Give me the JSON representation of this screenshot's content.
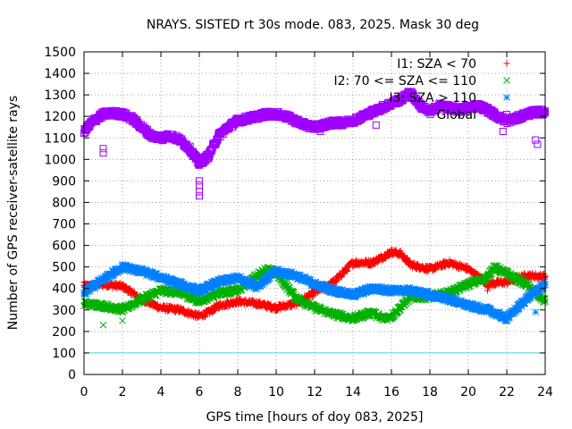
{
  "chart_data": {
    "type": "scatter",
    "title": "NRAYS. SISTED rt 30s mode. 083, 2025. Mask 30 deg",
    "xlabel": "GPS time [hours of doy 083, 2025]",
    "ylabel": "Number of GPS receiver-satellite rays",
    "xlim": [
      0,
      24
    ],
    "ylim": [
      0,
      1500
    ],
    "xticks": [
      0,
      2,
      4,
      6,
      8,
      10,
      12,
      14,
      16,
      18,
      20,
      22,
      24
    ],
    "yticks": [
      0,
      100,
      200,
      300,
      400,
      500,
      600,
      700,
      800,
      900,
      1000,
      1100,
      1200,
      1300,
      1400,
      1500
    ],
    "grid": true,
    "legend_position": "top-right",
    "reference_line": {
      "y": 100,
      "color": "#40e0e0"
    },
    "series": [
      {
        "name": "I1: SZA < 70",
        "legend_label": "I1: SZA < 70",
        "color": "#ff0000",
        "marker": "plus",
        "x": [
          0,
          1,
          2,
          3,
          4,
          5,
          6,
          6.5,
          7,
          8,
          9,
          10,
          11,
          12,
          13,
          14,
          15,
          16,
          16.5,
          17,
          18,
          19,
          20,
          21,
          22,
          23,
          24
        ],
        "y": [
          410,
          420,
          410,
          350,
          310,
          300,
          270,
          290,
          320,
          340,
          330,
          310,
          330,
          380,
          430,
          520,
          520,
          570,
          560,
          510,
          490,
          520,
          490,
          420,
          430,
          460,
          455
        ]
      },
      {
        "name": "I2: 70 <= SZA <= 110",
        "legend_label": "I2: 70 <= SZA <= 110",
        "color": "#00b000",
        "marker": "cross",
        "x": [
          0,
          1,
          2,
          3,
          4,
          5,
          6,
          7,
          8,
          9,
          9.5,
          10,
          11,
          12,
          13,
          14,
          15,
          15.5,
          16,
          17,
          18,
          19,
          20,
          21,
          21.3,
          22,
          23,
          24
        ],
        "y": [
          330,
          320,
          300,
          350,
          390,
          380,
          340,
          380,
          390,
          460,
          490,
          470,
          360,
          310,
          280,
          260,
          290,
          260,
          270,
          360,
          360,
          380,
          420,
          450,
          500,
          470,
          420,
          340
        ]
      },
      {
        "name": "I3: SZA > 110",
        "legend_label": "I3: SZA > 110",
        "color": "#0080ff",
        "marker": "star",
        "x": [
          0,
          1,
          2,
          3,
          4,
          5,
          6,
          7,
          8,
          9,
          10,
          11,
          12,
          13,
          14,
          15,
          16,
          17,
          18,
          19,
          20,
          21,
          22,
          23,
          24
        ],
        "y": [
          380,
          440,
          500,
          480,
          450,
          420,
          390,
          430,
          450,
          410,
          480,
          460,
          420,
          390,
          370,
          400,
          390,
          390,
          370,
          350,
          320,
          300,
          260,
          350,
          420
        ]
      },
      {
        "name": "Global",
        "legend_label": "Global",
        "color": "#a000ff",
        "marker": "square",
        "x": [
          0,
          0.5,
          1,
          1.5,
          2,
          2.5,
          3,
          3.5,
          4,
          4.5,
          5,
          5.5,
          6,
          6.5,
          7,
          7.5,
          8,
          8.5,
          9,
          9.5,
          10,
          10.5,
          11,
          11.5,
          12,
          12.5,
          13,
          13.5,
          14,
          14.5,
          15,
          15.5,
          16,
          16.5,
          17,
          17.5,
          18,
          18.5,
          19,
          19.5,
          20,
          20.5,
          21,
          21.5,
          22,
          22.5,
          23,
          23.5,
          24
        ],
        "y": [
          1130,
          1180,
          1210,
          1215,
          1210,
          1190,
          1150,
          1110,
          1100,
          1110,
          1090,
          1050,
          980,
          1020,
          1110,
          1150,
          1180,
          1190,
          1200,
          1210,
          1210,
          1200,
          1180,
          1160,
          1150,
          1160,
          1170,
          1170,
          1180,
          1200,
          1220,
          1240,
          1260,
          1280,
          1310,
          1250,
          1220,
          1250,
          1240,
          1230,
          1240,
          1250,
          1230,
          1200,
          1180,
          1190,
          1210,
          1220,
          1220
        ]
      }
    ],
    "outliers": [
      {
        "series": "Global",
        "x": [
          1,
          1,
          6,
          6,
          6,
          6,
          12.3,
          15.2,
          21.8,
          23.5,
          23.6
        ],
        "y": [
          1050,
          1030,
          900,
          880,
          850,
          830,
          1130,
          1160,
          1130,
          1090,
          1070
        ]
      },
      {
        "series": "I2: 70 <= SZA <= 110",
        "x": [
          1,
          2
        ],
        "y": [
          230,
          250
        ]
      },
      {
        "series": "I1: SZA < 70",
        "x": [
          0,
          21
        ],
        "y": [
          430,
          390
        ]
      },
      {
        "series": "I3: SZA > 110",
        "x": [
          23.5
        ],
        "y": [
          290
        ]
      }
    ]
  }
}
